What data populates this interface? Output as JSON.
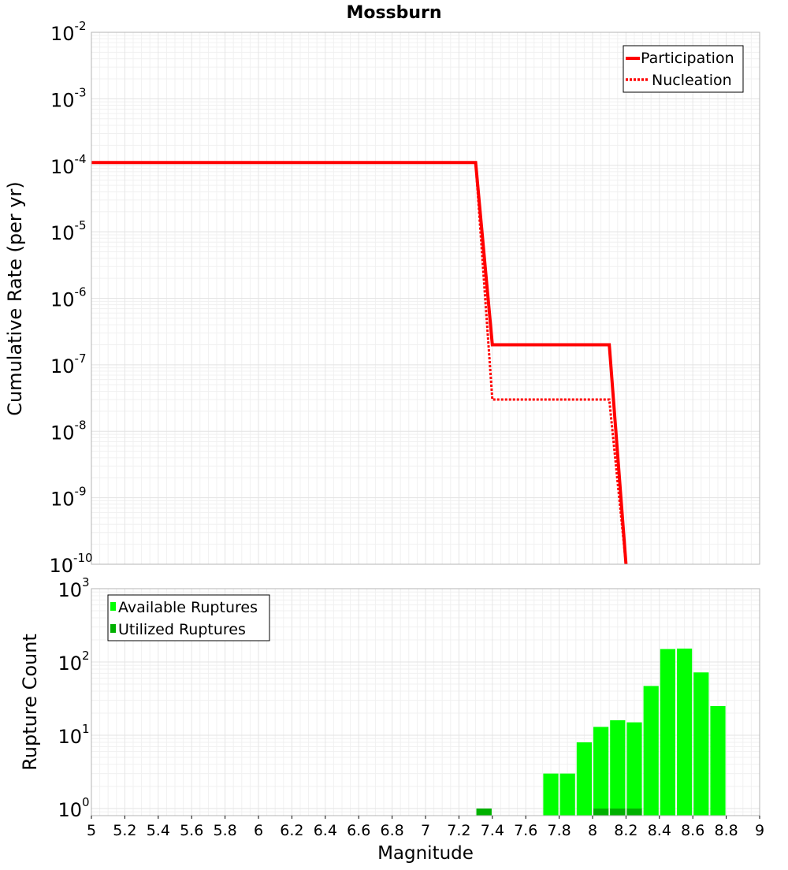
{
  "chart_data": [
    {
      "type": "line",
      "title": "Mossburn",
      "xlabel": "",
      "ylabel": "Cumulative Rate (per yr)",
      "xlim": [
        5,
        9
      ],
      "ylim": [
        1e-10,
        0.01
      ],
      "yscale": "log",
      "y_tick_labels": [
        {
          "base": "10",
          "exp": "-2"
        },
        {
          "base": "10",
          "exp": "-3"
        },
        {
          "base": "10",
          "exp": "-4"
        },
        {
          "base": "10",
          "exp": "-5"
        },
        {
          "base": "10",
          "exp": "-6"
        },
        {
          "base": "10",
          "exp": "-7"
        },
        {
          "base": "10",
          "exp": "-8"
        },
        {
          "base": "10",
          "exp": "-9"
        },
        {
          "base": "10",
          "exp": "-10"
        }
      ],
      "legend_position": "top-right",
      "series": [
        {
          "name": "Participation",
          "style": "solid",
          "color": "#ff0000",
          "x": [
            5.0,
            7.3,
            7.4,
            8.1,
            8.2
          ],
          "y": [
            0.00011,
            0.00011,
            2e-07,
            2e-07,
            1e-10
          ]
        },
        {
          "name": "Nucleation",
          "style": "dotted",
          "color": "#ff0000",
          "x": [
            5.0,
            7.3,
            7.4,
            8.1,
            8.2
          ],
          "y": [
            0.00011,
            0.00011,
            3e-08,
            3e-08,
            1e-10
          ]
        }
      ]
    },
    {
      "type": "bar",
      "title": "",
      "xlabel": "Magnitude",
      "ylabel": "Rupture Count",
      "xlim": [
        5,
        9
      ],
      "ylim": [
        0.8,
        1000
      ],
      "yscale": "log",
      "y_tick_labels": [
        {
          "base": "10",
          "exp": "3"
        },
        {
          "base": "10",
          "exp": "2"
        },
        {
          "base": "10",
          "exp": "1"
        },
        {
          "base": "10",
          "exp": "0"
        }
      ],
      "x_tick_labels": [
        "5",
        "5.2",
        "5.4",
        "5.6",
        "5.8",
        "6",
        "6.2",
        "6.4",
        "6.6",
        "6.8",
        "7",
        "7.2",
        "7.4",
        "7.6",
        "7.8",
        "8",
        "8.2",
        "8.4",
        "8.6",
        "8.8",
        "9"
      ],
      "bin_width": 0.1,
      "legend_position": "top-left",
      "series": [
        {
          "name": "Available Ruptures",
          "color": "#00ff00",
          "x": [
            7.35,
            7.75,
            7.85,
            7.95,
            8.05,
            8.15,
            8.25,
            8.35,
            8.45,
            8.55,
            8.65,
            8.75
          ],
          "values": [
            1,
            3,
            3,
            8,
            13,
            16,
            15,
            47,
            150,
            152,
            72,
            25
          ]
        },
        {
          "name": "Utilized Ruptures",
          "color": "#00b000",
          "x": [
            7.35,
            8.05,
            8.15,
            8.25
          ],
          "values": [
            1,
            1,
            1,
            1
          ]
        }
      ]
    }
  ]
}
